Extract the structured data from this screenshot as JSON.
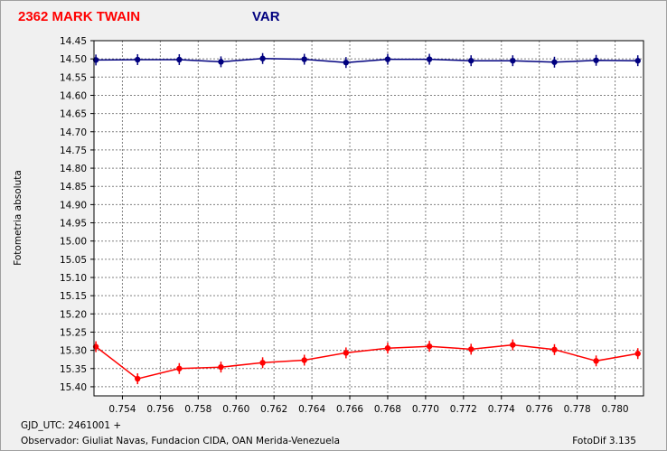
{
  "header": {
    "object_name": "2362 MARK TWAIN",
    "series_label": "VAR",
    "object_color": "#ff0000",
    "series_color": "#00007f"
  },
  "footer": {
    "gjd": "GJD_UTC: 2461001 +",
    "observer": "Observador: Giuliat Navas, Fundacion CIDA, OAN  Merida-Venezuela",
    "software": "FotoDif 3.135"
  },
  "chart_data": {
    "type": "line",
    "ylabel": "Fotometria absoluta",
    "xlabel": "",
    "xlim": [
      0.7525,
      0.7815
    ],
    "ylim": [
      15.425,
      14.45
    ],
    "y_inverted": true,
    "grid": true,
    "x_ticks": [
      "0.754",
      "0.756",
      "0.758",
      "0.760",
      "0.762",
      "0.764",
      "0.766",
      "0.768",
      "0.770",
      "0.772",
      "0.774",
      "0.776",
      "0.778",
      "0.780"
    ],
    "y_ticks": [
      "14.45",
      "14.50",
      "14.55",
      "14.60",
      "14.65",
      "14.70",
      "14.75",
      "14.80",
      "14.85",
      "14.90",
      "14.95",
      "15.00",
      "15.05",
      "15.10",
      "15.15",
      "15.20",
      "15.25",
      "15.30",
      "15.35",
      "15.40"
    ],
    "series": [
      {
        "color": "#00007f",
        "x": [
          0.7526,
          0.7548,
          0.757,
          0.7592,
          0.7614,
          0.7636,
          0.7658,
          0.768,
          0.7702,
          0.7724,
          0.7746,
          0.7768,
          0.779,
          0.7812
        ],
        "y": [
          14.503,
          14.502,
          14.502,
          14.508,
          14.499,
          14.501,
          14.51,
          14.501,
          14.501,
          14.505,
          14.505,
          14.509,
          14.504,
          14.505
        ]
      },
      {
        "color": "#ff0000",
        "x": [
          0.7526,
          0.7548,
          0.757,
          0.7592,
          0.7614,
          0.7636,
          0.7658,
          0.768,
          0.7702,
          0.7724,
          0.7746,
          0.7768,
          0.779,
          0.7812
        ],
        "y": [
          15.29,
          15.378,
          15.35,
          15.346,
          15.334,
          15.327,
          15.307,
          15.294,
          15.289,
          15.297,
          15.285,
          15.298,
          15.329,
          15.309
        ]
      }
    ]
  }
}
